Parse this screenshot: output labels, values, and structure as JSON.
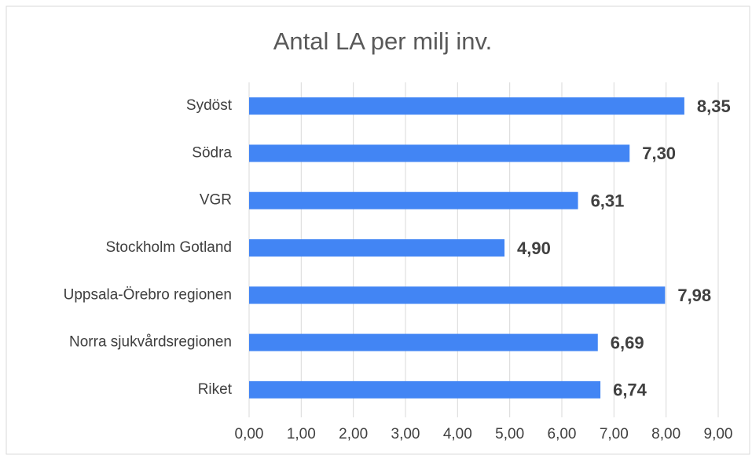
{
  "chart_data": {
    "type": "bar",
    "orientation": "horizontal",
    "title": "Antal LA per milj inv.",
    "categories": [
      "Sydöst",
      "Södra",
      "VGR",
      "Stockholm Gotland",
      "Uppsala-Örebro regionen",
      "Norra sjukvårdsregionen",
      "Riket"
    ],
    "values": [
      8.35,
      7.3,
      6.31,
      4.9,
      7.98,
      6.69,
      6.74
    ],
    "value_labels": [
      "8,35",
      "7,30",
      "6,31",
      "4,90",
      "7,98",
      "6,69",
      "6,74"
    ],
    "color": "#4285f4",
    "xlim": [
      0,
      9
    ],
    "xticks": [
      {
        "value": 0,
        "label": "0,00"
      },
      {
        "value": 1,
        "label": "1,00"
      },
      {
        "value": 2,
        "label": "2,00"
      },
      {
        "value": 3,
        "label": "3,00"
      },
      {
        "value": 4,
        "label": "4,00"
      },
      {
        "value": 5,
        "label": "5,00"
      },
      {
        "value": 6,
        "label": "6,00"
      },
      {
        "value": 7,
        "label": "7,00"
      },
      {
        "value": 8,
        "label": "8,00"
      },
      {
        "value": 9,
        "label": "9,00"
      }
    ],
    "grid": true
  }
}
